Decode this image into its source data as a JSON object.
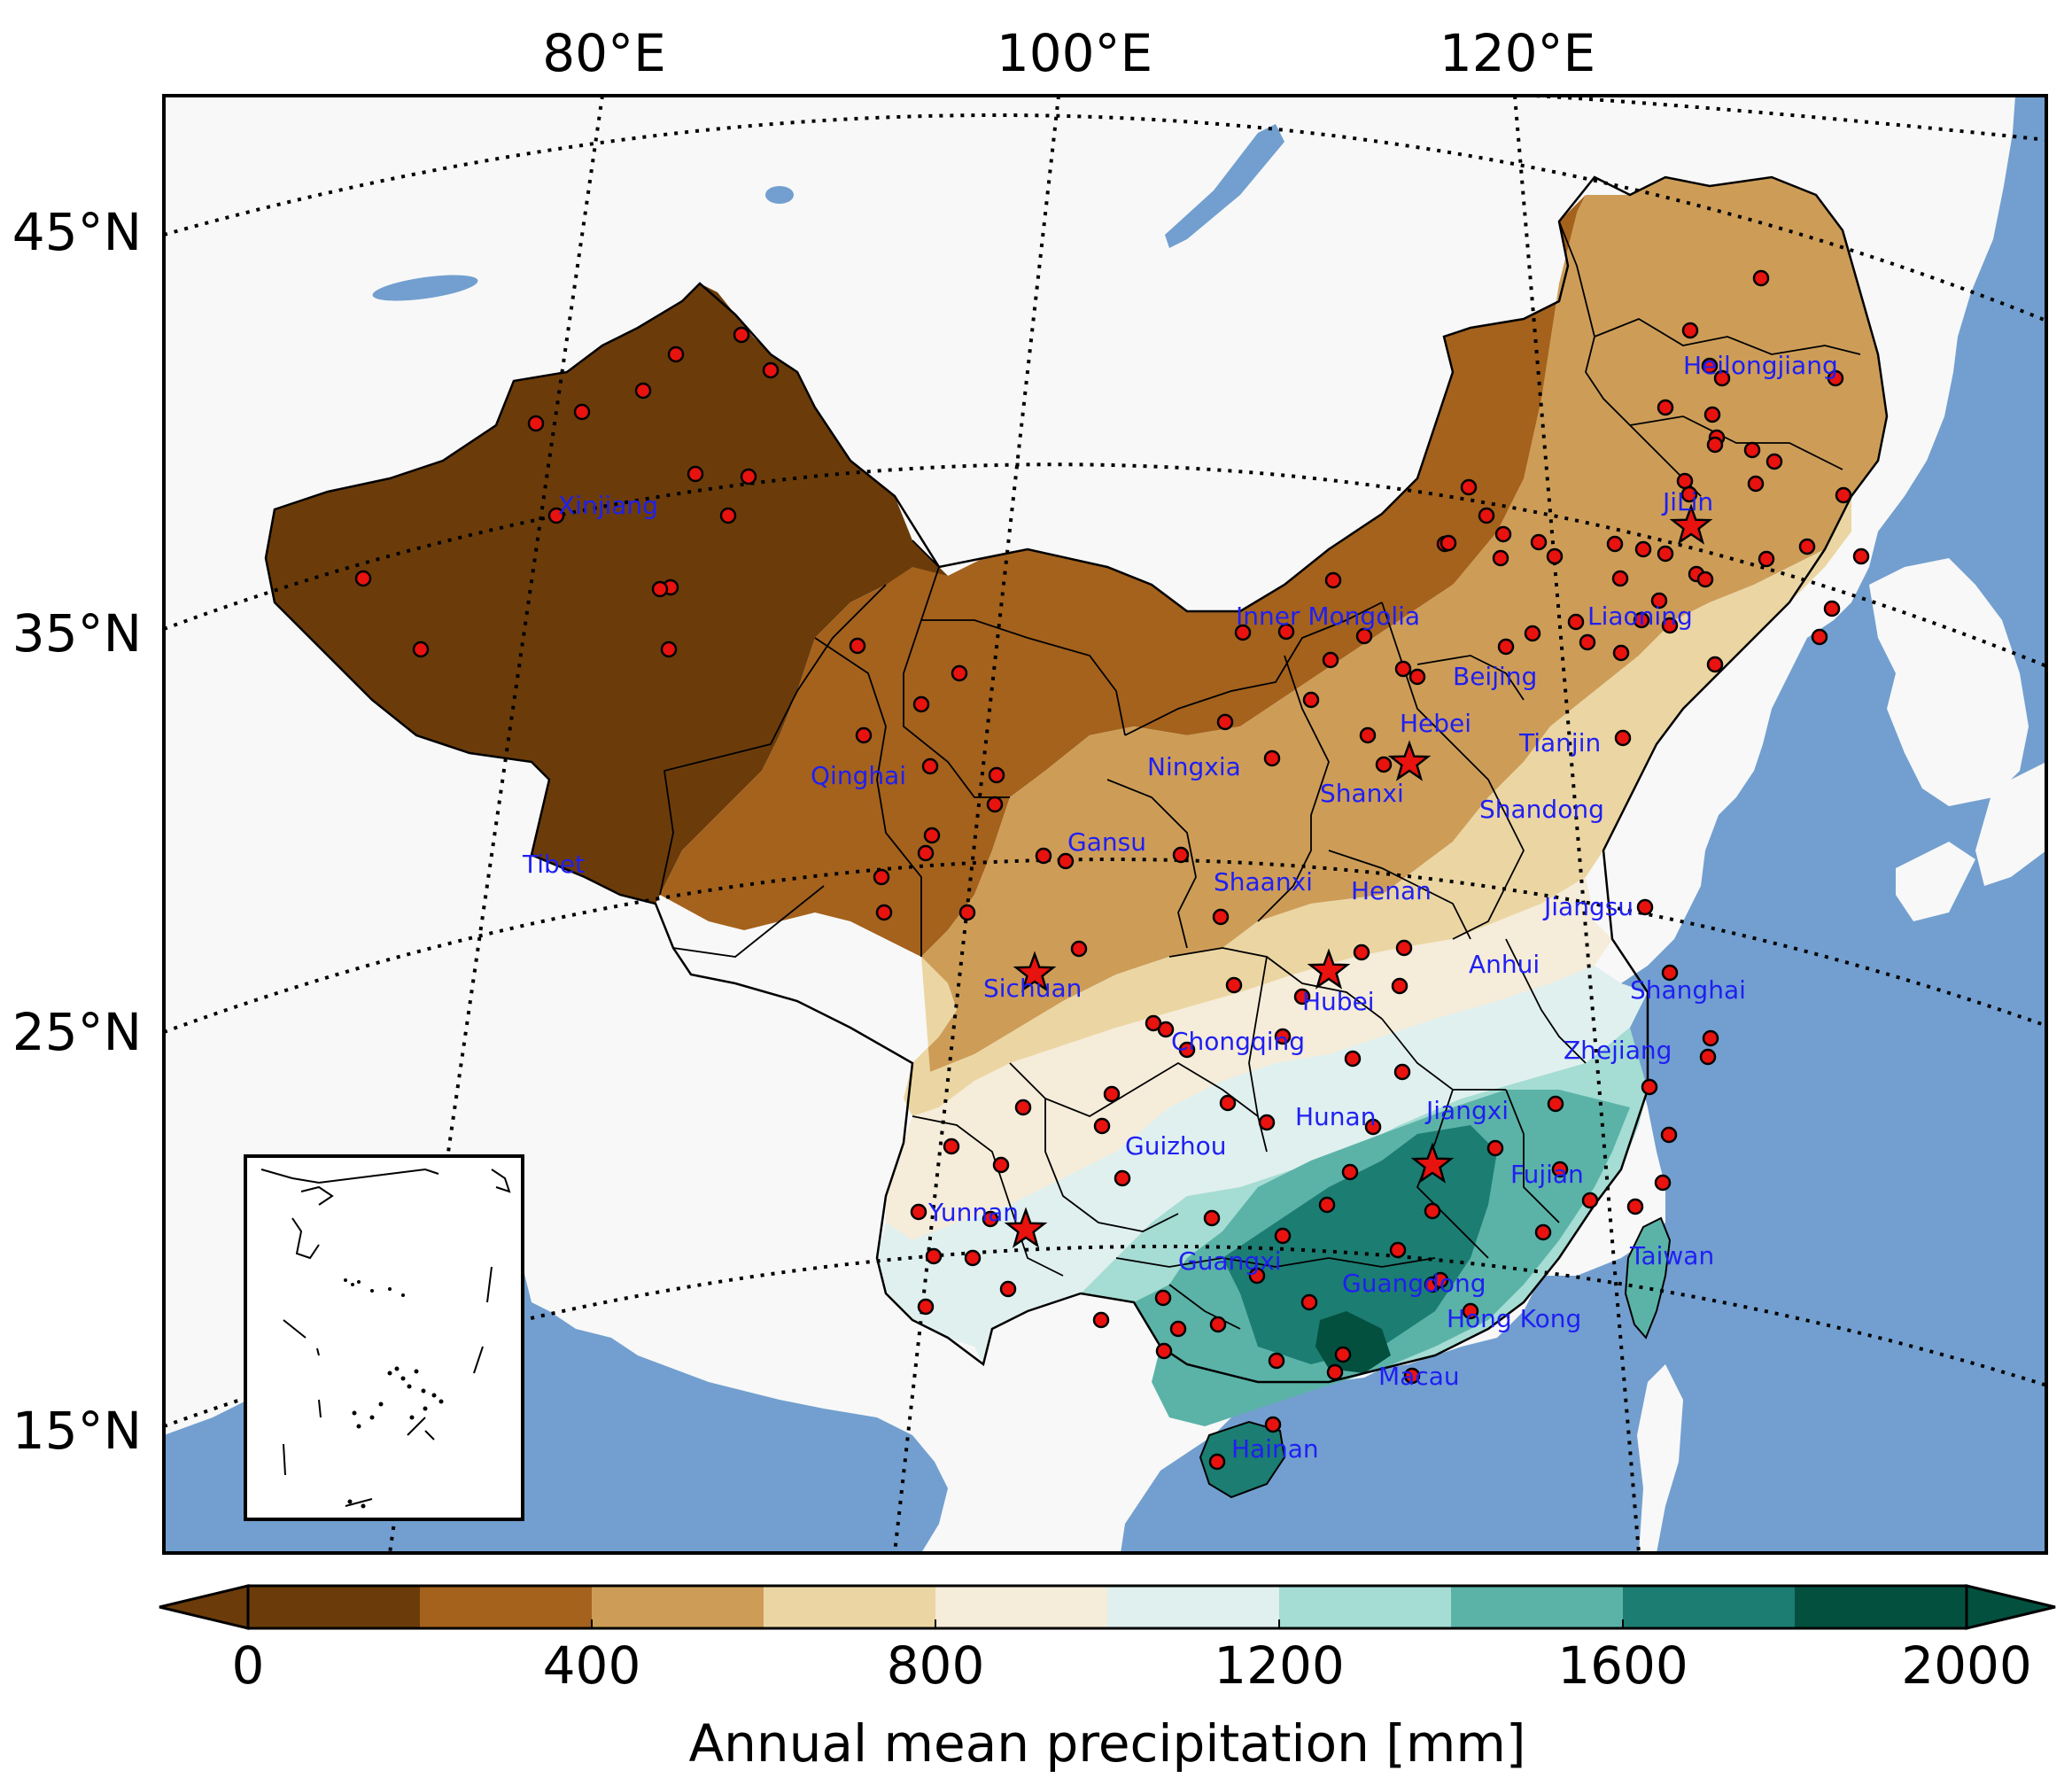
{
  "map": {
    "lon_labels": [
      "80°E",
      "100°E",
      "120°E"
    ],
    "lat_labels": [
      "45°N",
      "35°N",
      "25°N",
      "15°N"
    ],
    "colors": {
      "ocean": "#729fcf",
      "land": "#f8f8f8",
      "station": "#e8120f",
      "star": "#e8120f",
      "label": "#1f1ff2"
    },
    "provinces": [
      "Xinjiang",
      "Tibet",
      "Qinghai",
      "Gansu",
      "Inner Mongolia",
      "Ningxia",
      "Shaanxi",
      "Shanxi",
      "Hebei",
      "Beijing",
      "Tianjin",
      "Liaoning",
      "JiLin",
      "Heilongjiang",
      "Shandong",
      "Henan",
      "Jiangsu",
      "Anhui",
      "Shanghai",
      "Hubei",
      "Sichuan",
      "Chongqing",
      "Zhejiang",
      "Hunan",
      "Jiangxi",
      "Guizhou",
      "Fujian",
      "Yunnan",
      "Guangxi",
      "Guangdong",
      "Taiwan",
      "Hong Kong",
      "Macau",
      "Hainan"
    ]
  },
  "colorbar": {
    "title": "Annual mean precipitation [mm]",
    "ticks": [
      "0",
      "400",
      "800",
      "1200",
      "1600",
      "2000"
    ],
    "levels": [
      0,
      200,
      400,
      600,
      800,
      1000,
      1200,
      1400,
      1600,
      1800,
      2000
    ],
    "colors": [
      "#6b3c0a",
      "#a4621d",
      "#cd9d58",
      "#ebd6a3",
      "#f5ecd9",
      "#dff0ee",
      "#a5dcd3",
      "#5bb3a8",
      "#1c7d72",
      "#03503f"
    ]
  }
}
